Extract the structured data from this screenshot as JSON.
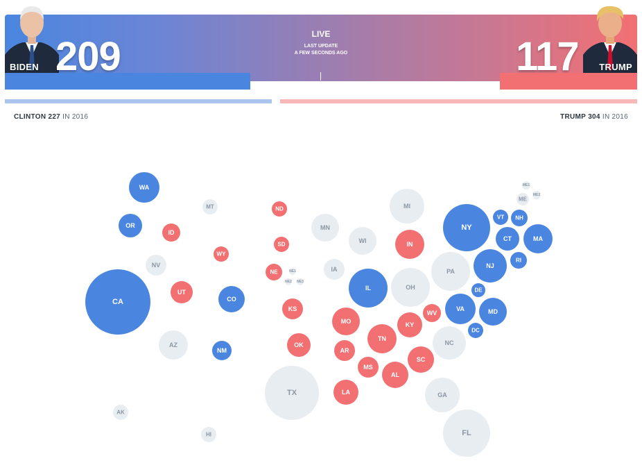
{
  "header": {
    "live_label": "LIVE",
    "last_update_line1": "LAST UPDATE",
    "last_update_line2": "A FEW SECONDS AGO"
  },
  "candidates": {
    "biden": {
      "name": "BIDEN",
      "electoral_votes": "209",
      "progress_fraction": 0.388,
      "color": "#4a86e0"
    },
    "trump": {
      "name": "TRUMP",
      "electoral_votes": "117",
      "progress_fraction": 0.217,
      "color": "#f27072"
    }
  },
  "history_2016": {
    "clinton_name": "CLINTON",
    "clinton_votes": "227",
    "trump_name": "TRUMP",
    "trump_votes": "304",
    "suffix": "IN 2016",
    "clinton_color": "#a9c5ef",
    "trump_color": "#f8b8b8"
  },
  "colors": {
    "dem": "#4a86e0",
    "rep": "#f27072",
    "undecided": "#e8edf2",
    "undecided_text": "#8a96a3"
  },
  "states": [
    {
      "abbr": "WA",
      "status": "dem"
    },
    {
      "abbr": "OR",
      "status": "dem"
    },
    {
      "abbr": "CA",
      "status": "dem"
    },
    {
      "abbr": "NV",
      "status": "undecided"
    },
    {
      "abbr": "ID",
      "status": "rep"
    },
    {
      "abbr": "MT",
      "status": "undecided"
    },
    {
      "abbr": "WY",
      "status": "rep"
    },
    {
      "abbr": "UT",
      "status": "rep"
    },
    {
      "abbr": "CO",
      "status": "dem"
    },
    {
      "abbr": "AZ",
      "status": "undecided"
    },
    {
      "abbr": "NM",
      "status": "dem"
    },
    {
      "abbr": "AK",
      "status": "undecided"
    },
    {
      "abbr": "HI",
      "status": "undecided"
    },
    {
      "abbr": "ND",
      "status": "rep"
    },
    {
      "abbr": "SD",
      "status": "rep"
    },
    {
      "abbr": "NE",
      "status": "rep"
    },
    {
      "abbr": "NE1",
      "status": "undecided"
    },
    {
      "abbr": "NE2",
      "status": "undecided"
    },
    {
      "abbr": "NE3",
      "status": "undecided"
    },
    {
      "abbr": "KS",
      "status": "rep"
    },
    {
      "abbr": "OK",
      "status": "rep"
    },
    {
      "abbr": "TX",
      "status": "undecided"
    },
    {
      "abbr": "MN",
      "status": "undecided"
    },
    {
      "abbr": "IA",
      "status": "undecided"
    },
    {
      "abbr": "MO",
      "status": "rep"
    },
    {
      "abbr": "AR",
      "status": "rep"
    },
    {
      "abbr": "LA",
      "status": "rep"
    },
    {
      "abbr": "WI",
      "status": "undecided"
    },
    {
      "abbr": "IL",
      "status": "dem"
    },
    {
      "abbr": "MS",
      "status": "rep"
    },
    {
      "abbr": "MI",
      "status": "undecided"
    },
    {
      "abbr": "IN",
      "status": "rep"
    },
    {
      "abbr": "OH",
      "status": "undecided"
    },
    {
      "abbr": "KY",
      "status": "rep"
    },
    {
      "abbr": "TN",
      "status": "rep"
    },
    {
      "abbr": "AL",
      "status": "rep"
    },
    {
      "abbr": "WV",
      "status": "rep"
    },
    {
      "abbr": "SC",
      "status": "rep"
    },
    {
      "abbr": "GA",
      "status": "undecided"
    },
    {
      "abbr": "FL",
      "status": "undecided"
    },
    {
      "abbr": "PA",
      "status": "undecided"
    },
    {
      "abbr": "NC",
      "status": "undecided"
    },
    {
      "abbr": "VA",
      "status": "dem"
    },
    {
      "abbr": "MD",
      "status": "dem"
    },
    {
      "abbr": "DE",
      "status": "dem"
    },
    {
      "abbr": "DC",
      "status": "dem"
    },
    {
      "abbr": "NY",
      "status": "dem"
    },
    {
      "abbr": "NJ",
      "status": "dem"
    },
    {
      "abbr": "VT",
      "status": "dem"
    },
    {
      "abbr": "NH",
      "status": "dem"
    },
    {
      "abbr": "CT",
      "status": "dem"
    },
    {
      "abbr": "RI",
      "status": "dem"
    },
    {
      "abbr": "MA",
      "status": "dem"
    },
    {
      "abbr": "ME",
      "status": "undecided"
    },
    {
      "abbr": "ME1",
      "status": "undecided"
    },
    {
      "abbr": "ME2",
      "status": "undecided"
    }
  ]
}
